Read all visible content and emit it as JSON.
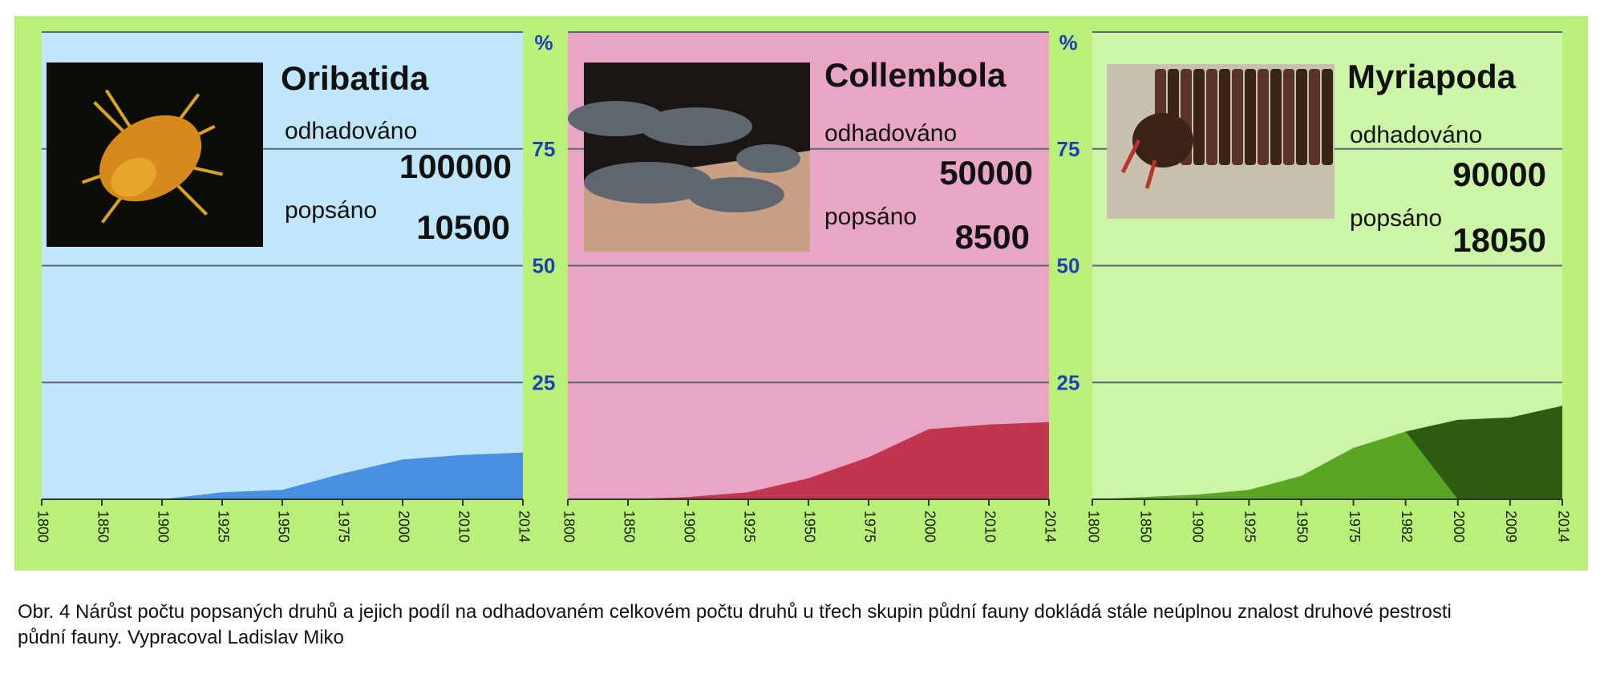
{
  "colors": {
    "frame": "#b8f07a",
    "grid": "#5a6670",
    "tick_pct": "#1f3fb5",
    "axis_text": "#1a1a1a"
  },
  "labels": {
    "estimated": "odhadováno",
    "described": "popsáno",
    "pct_symbol": "%"
  },
  "y_ticks": [
    "25",
    "50",
    "75"
  ],
  "caption": {
    "line1": "Obr. 4 Nárůst počtu popsaných druhů a jejich podíl na odhadovaném celkovém počtu druhů u třech skupin půdní fauny dokládá stále neúplnou znalost druhové pestrosti",
    "line2": "půdní fauny. Vypracoval Ladislav Miko"
  },
  "chart_data": [
    {
      "type": "area",
      "title": "Oribatida",
      "image_icon": "mite-photo",
      "estimated": "100000",
      "described": "10500",
      "ylim": [
        0,
        100
      ],
      "grid": true,
      "bg": "#bfe6fa",
      "fill": "#4a90e2",
      "x": [
        "1800",
        "1850",
        "1900",
        "1925",
        "1950",
        "1975",
        "2000",
        "2010",
        "2014"
      ],
      "series": [
        {
          "values": [
            0,
            0,
            0,
            1.5,
            2,
            5.5,
            8.5,
            9.5,
            10
          ]
        }
      ]
    },
    {
      "type": "area",
      "title": "Collembola",
      "image_icon": "springtail-photo",
      "estimated": "50000",
      "described": "8500",
      "ylim": [
        0,
        100
      ],
      "grid": true,
      "bg": "#e8a6c4",
      "fill": "#c0364f",
      "x": [
        "1800",
        "1850",
        "1900",
        "1925",
        "1950",
        "1975",
        "2000",
        "2010",
        "2014"
      ],
      "series": [
        {
          "values": [
            0,
            0,
            0.5,
            1.5,
            4.5,
            9,
            15,
            16,
            16.5
          ]
        }
      ]
    },
    {
      "type": "area",
      "title": "Myriapoda",
      "image_icon": "millipede-photo",
      "estimated": "90000",
      "described": "18050",
      "ylim": [
        0,
        100
      ],
      "grid": true,
      "bg": "#cdf5a8",
      "fill": "#5aa622",
      "fill_dark": "#2e5a12",
      "x": [
        "1800",
        "1850",
        "1900",
        "1925",
        "1950",
        "1975",
        "1982",
        "2000",
        "2009",
        "2014"
      ],
      "series": [
        {
          "values": [
            0,
            0.5,
            1,
            2,
            5,
            11,
            14.5,
            17,
            17.5,
            20
          ]
        }
      ]
    }
  ]
}
